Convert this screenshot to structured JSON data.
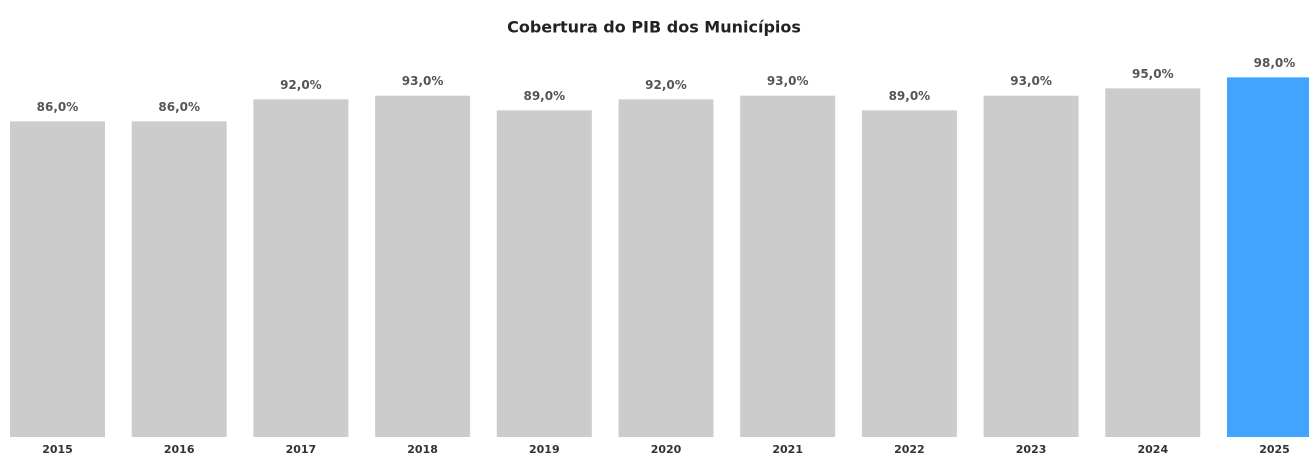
{
  "chart_data": {
    "type": "bar",
    "title": "Cobertura do PIB dos Municípios",
    "categories": [
      "2015",
      "2016",
      "2017",
      "2018",
      "2019",
      "2020",
      "2021",
      "2022",
      "2023",
      "2024",
      "2025"
    ],
    "values": [
      86,
      86,
      92,
      93,
      89,
      92,
      93,
      89,
      93,
      95,
      98
    ],
    "value_labels": [
      "86,0%",
      "86,0%",
      "92,0%",
      "93,0%",
      "89,0%",
      "92,0%",
      "93,0%",
      "89,0%",
      "93,0%",
      "95,0%",
      "98,0%"
    ],
    "colors": [
      "#cccccc",
      "#cccccc",
      "#cccccc",
      "#cccccc",
      "#cccccc",
      "#cccccc",
      "#cccccc",
      "#cccccc",
      "#cccccc",
      "#cccccc",
      "#41a5ff"
    ]
  }
}
